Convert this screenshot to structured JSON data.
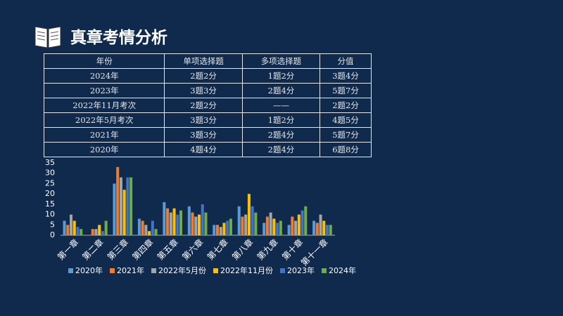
{
  "header": {
    "title": "真章考情分析"
  },
  "table": {
    "columns": [
      "年份",
      "单项选择题",
      "多项选择题",
      "分值"
    ],
    "rows": [
      [
        "2024年",
        "2题2分",
        "1题2分",
        "3题4分"
      ],
      [
        "2023年",
        "3题3分",
        "2题4分",
        "5题7分"
      ],
      [
        "2022年11月考次",
        "2题2分",
        "——",
        "2题2分"
      ],
      [
        "2022年5月考次",
        "3题3分",
        "1题2分",
        "4题5分"
      ],
      [
        "2021年",
        "3题3分",
        "2题4分",
        "5题7分"
      ],
      [
        "2020年",
        "4题4分",
        "2题4分",
        "6题8分"
      ]
    ]
  },
  "chart_data": {
    "type": "bar",
    "categories": [
      "第一章",
      "第二章",
      "第三章",
      "第四章",
      "第五章",
      "第六章",
      "第七章",
      "第八章",
      "第九章",
      "第十章",
      "第十一章"
    ],
    "series": [
      {
        "name": "2020年",
        "color": "#5b9bd5",
        "values": [
          7,
          0,
          25,
          8,
          16,
          14,
          5,
          14,
          6,
          5,
          7
        ]
      },
      {
        "name": "2021年",
        "color": "#ed7d31",
        "values": [
          5,
          3,
          33,
          7,
          13,
          11,
          5,
          9,
          9,
          9,
          6
        ]
      },
      {
        "name": "2022年5月份",
        "color": "#a5a5a5",
        "values": [
          10,
          3,
          28,
          5,
          11,
          9,
          4,
          10,
          11,
          7,
          10
        ]
      },
      {
        "name": "2022年11月份",
        "color": "#ffc000",
        "values": [
          7,
          5,
          22,
          2,
          13,
          10,
          6,
          20,
          8,
          10,
          7
        ]
      },
      {
        "name": "2023年",
        "color": "#4472c4",
        "values": [
          4,
          2,
          28,
          7,
          10,
          15,
          7,
          14,
          6,
          12,
          5
        ]
      },
      {
        "name": "2024年",
        "color": "#70ad47",
        "values": [
          3,
          7,
          28,
          3,
          12,
          11,
          8,
          11,
          7,
          14,
          5
        ]
      }
    ],
    "ylim": [
      0,
      35
    ],
    "yticks": [
      0,
      5,
      10,
      15,
      20,
      25,
      30,
      35
    ],
    "grid": false
  }
}
